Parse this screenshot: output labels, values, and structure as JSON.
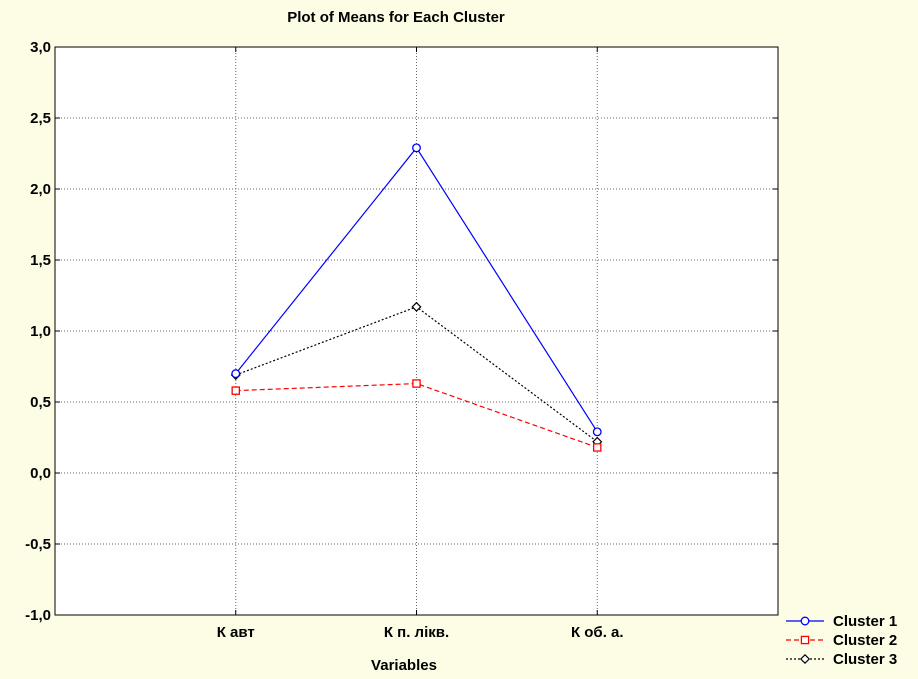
{
  "chart_data": {
    "type": "line",
    "title": "Plot of Means for Each Cluster",
    "xlabel": "Variables",
    "ylabel": "",
    "categories": [
      "К авт",
      "К п. лікв.",
      "К об. а."
    ],
    "ylim": [
      -1.0,
      3.0
    ],
    "yticks": [
      "-1,0",
      "-0,5",
      "0,0",
      "0,5",
      "1,0",
      "1,5",
      "2,0",
      "2,5",
      "3,0"
    ],
    "grid": true,
    "legend_position": "bottom-right",
    "series": [
      {
        "name": "Cluster  1",
        "values": [
          0.7,
          2.29,
          0.29
        ],
        "color": "#0000ff",
        "marker": "circle",
        "dash": "solid"
      },
      {
        "name": "Cluster  2",
        "values": [
          0.58,
          0.63,
          0.18
        ],
        "color": "#ff0000",
        "marker": "square",
        "dash": "dashed"
      },
      {
        "name": "Cluster  3",
        "values": [
          0.69,
          1.17,
          0.22
        ],
        "color": "#000000",
        "marker": "diamond",
        "dash": "dotted"
      }
    ]
  }
}
